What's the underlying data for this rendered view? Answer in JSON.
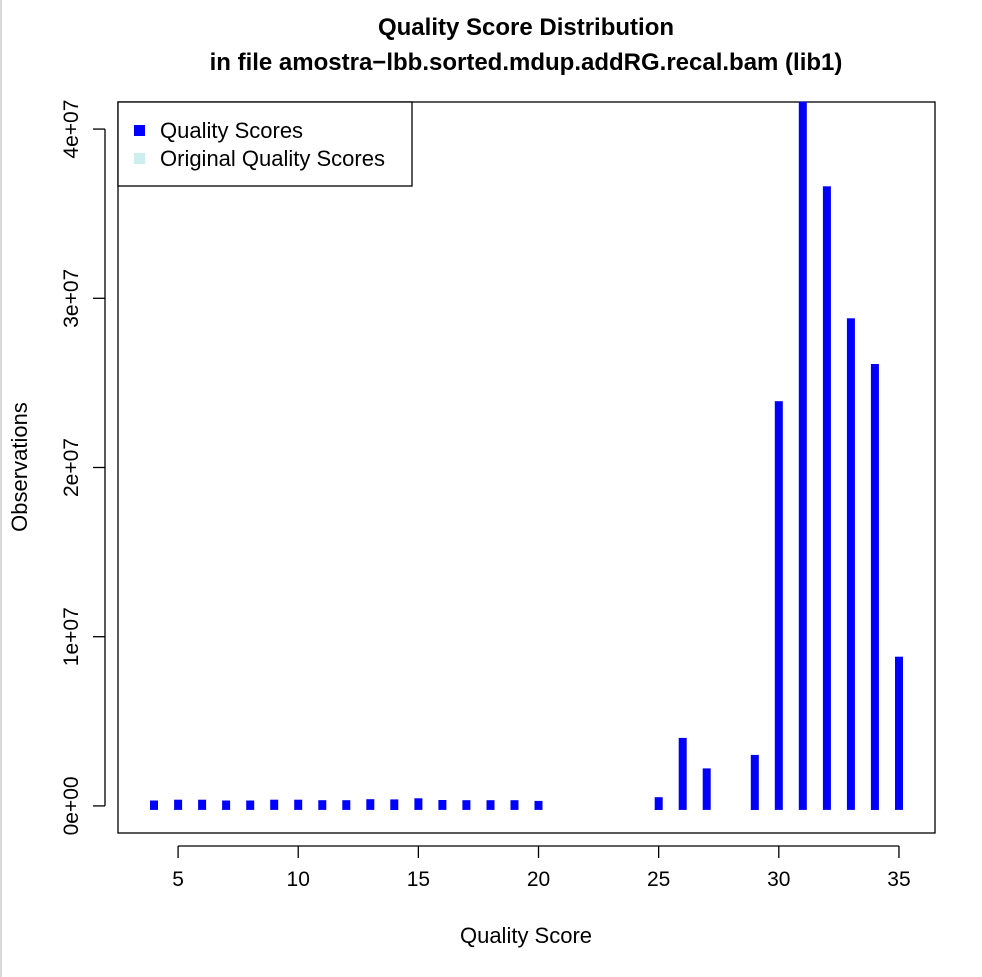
{
  "chart_data": {
    "type": "bar",
    "title": "Quality Score Distribution",
    "subtitle": "in file amostra−lbb.sorted.mdup.addRG.recal.bam (lib1)",
    "xlabel": "Quality Score",
    "ylabel": "Observations",
    "xlim": [
      2.5,
      36.5
    ],
    "ylim": [
      -1600000,
      41600000
    ],
    "x_ticks": [
      5,
      10,
      15,
      20,
      25,
      30,
      35
    ],
    "y_ticks": [
      0,
      10000000,
      20000000,
      30000000,
      40000000
    ],
    "y_tick_labels": [
      "0e+00",
      "1e+07",
      "2e+07",
      "3e+07",
      "4e+07"
    ],
    "legend": {
      "position": "top-left",
      "entries": [
        {
          "label": "Quality Scores",
          "color": "#0000ff"
        },
        {
          "label": "Original Quality Scores",
          "color": "#cceeee"
        }
      ]
    },
    "series": [
      {
        "name": "Quality Scores",
        "color": "#0000ff",
        "x": [
          4,
          5,
          6,
          7,
          8,
          9,
          10,
          11,
          12,
          13,
          14,
          15,
          16,
          17,
          18,
          19,
          20,
          25,
          26,
          27,
          29,
          30,
          31,
          32,
          33,
          34,
          35
        ],
        "values": [
          200000,
          250000,
          250000,
          200000,
          200000,
          250000,
          250000,
          220000,
          220000,
          280000,
          270000,
          330000,
          230000,
          220000,
          220000,
          220000,
          180000,
          400000,
          3900000,
          2100000,
          2900000,
          23800000,
          41500000,
          36500000,
          28700000,
          26000000,
          8700000
        ]
      },
      {
        "name": "Original Quality Scores",
        "color": "#cceeee",
        "x": [],
        "values": []
      }
    ],
    "grid": false
  }
}
